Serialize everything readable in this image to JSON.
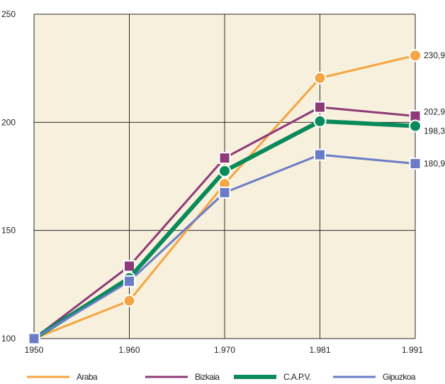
{
  "chart_data": {
    "type": "line",
    "title": "",
    "xlabel": "",
    "ylabel": "",
    "x": [
      "1950",
      "1.960",
      "1.970",
      "1.981",
      "1.991"
    ],
    "ylim": [
      100,
      250
    ],
    "yticks": [
      "100",
      "150",
      "200",
      "250"
    ],
    "grid": true,
    "legend_position": "bottom",
    "series": [
      {
        "name": "Araba",
        "color": "#f5a542",
        "marker": "circle",
        "values": [
          100,
          117.5,
          171.5,
          220.5,
          230.9
        ],
        "end_label": "230,9"
      },
      {
        "name": "Bizkaia",
        "color": "#8e3a78",
        "marker": "square",
        "values": [
          100,
          133.5,
          183.5,
          207,
          202.9
        ],
        "end_label": "202,9"
      },
      {
        "name": "C.A.P.V.",
        "color": "#0a8a5a",
        "marker": "circle",
        "values": [
          100,
          128,
          177.5,
          200.5,
          198.3
        ],
        "end_label": "198,3"
      },
      {
        "name": "Gipuzkoa",
        "color": "#6a7cc7",
        "marker": "square",
        "values": [
          100,
          126.5,
          167.5,
          185,
          180.9
        ],
        "end_label": "180,9"
      }
    ]
  }
}
